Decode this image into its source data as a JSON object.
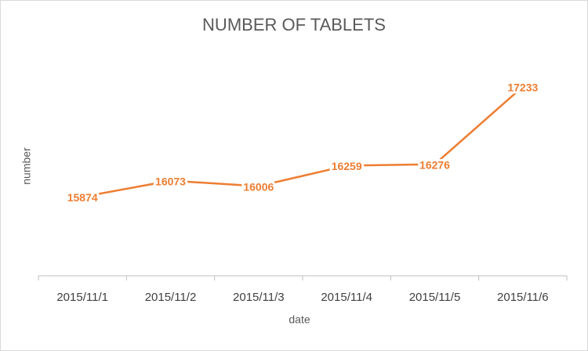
{
  "chart_data": {
    "type": "line",
    "title": "NUMBER OF TABLETS",
    "x_label": "date",
    "y_label": "number",
    "categories": [
      "2015/11/1",
      "2015/11/2",
      "2015/11/3",
      "2015/11/4",
      "2015/11/5",
      "2015/11/6"
    ],
    "values": [
      15874,
      16073,
      16006,
      16259,
      16276,
      17233
    ],
    "color": "#ed7d31",
    "ylim": [
      14900,
      17800
    ]
  }
}
